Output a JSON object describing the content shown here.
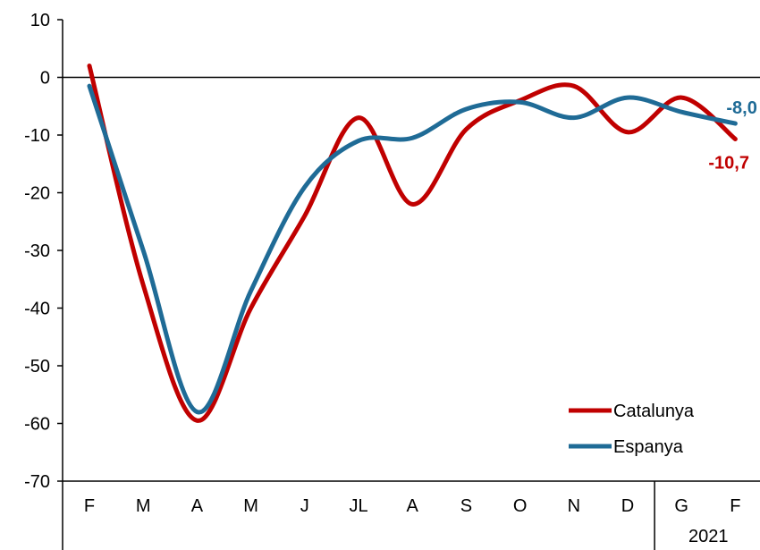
{
  "chart_data": {
    "type": "line",
    "title": "",
    "xlabel": "",
    "ylabel": "",
    "ylim": [
      -70,
      10
    ],
    "yticks": [
      10,
      0,
      -10,
      -20,
      -30,
      -40,
      -50,
      -60,
      -70
    ],
    "categories": [
      "F",
      "M",
      "A",
      "M",
      "J",
      "JL",
      "A",
      "S",
      "O",
      "N",
      "D",
      "G",
      "F"
    ],
    "year_label": "2021",
    "year_group_start_index": 11,
    "grid": false,
    "legend_position": "bottom-right",
    "series": [
      {
        "name": "Catalunya",
        "color": "#C00000",
        "values": [
          2,
          -36,
          -59.5,
          -40,
          -24,
          -7,
          -22,
          -9,
          -4,
          -1.5,
          -9.5,
          -3.5,
          -10.7
        ],
        "end_label": "-10,7"
      },
      {
        "name": "Espanya",
        "color": "#1F6B96",
        "values": [
          -1.5,
          -30,
          -58,
          -37,
          -19,
          -11,
          -10.5,
          -5.5,
          -4.3,
          -7,
          -3.5,
          -6,
          -8.0
        ],
        "end_label": "-8,0"
      }
    ]
  }
}
